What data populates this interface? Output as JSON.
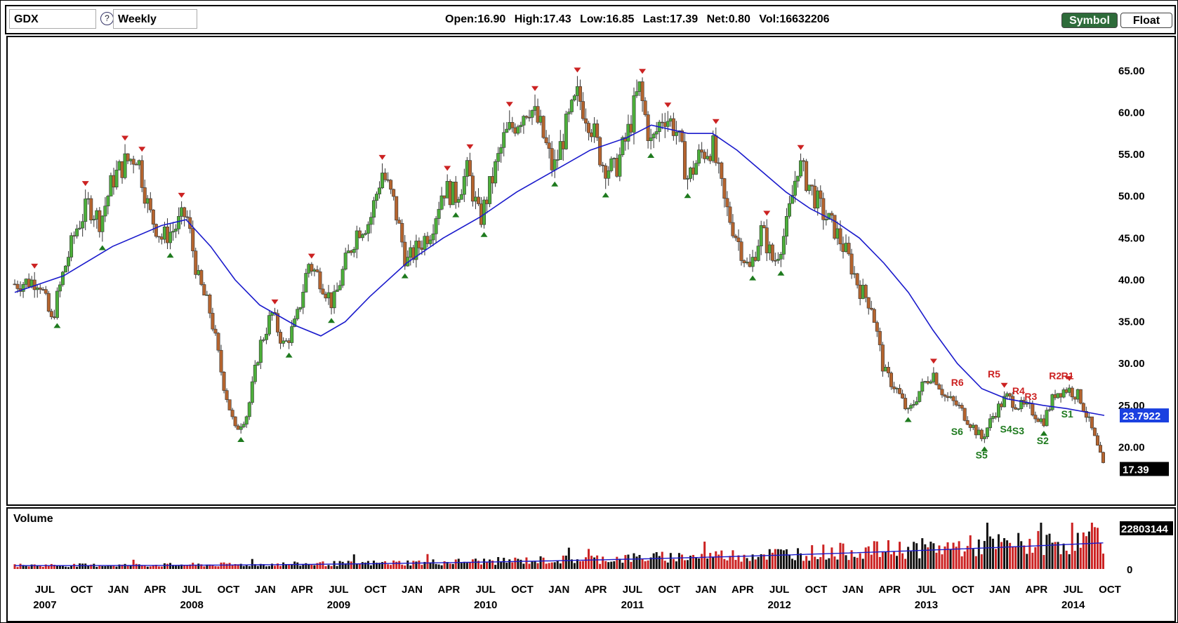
{
  "toolbar": {
    "symbol": "GDX",
    "period": "Weekly",
    "help_icon": "?",
    "quote": {
      "open": "Open:16.90",
      "high": "High:17.43",
      "low": "Low:16.85",
      "last": "Last:17.39",
      "net": "Net:0.80",
      "vol": "Vol:16632206"
    },
    "symbol_button": "Symbol",
    "float_button": "Float"
  },
  "volume_panel": {
    "title": "Volume",
    "last_value_label": "22803144",
    "zero_label": "0"
  },
  "colors": {
    "up": "#4caf3a",
    "down": "#b5642e",
    "ma": "#1a1acc",
    "resistance": "#cc2222",
    "support": "#1e7a1e",
    "ma_label_bg": "#1a40e0",
    "last_label_bg": "#000000",
    "volume_up": "#111111",
    "volume_down": "#cc2222"
  },
  "chart_data": {
    "type": "line",
    "ylim": [
      14,
      68
    ],
    "y_ticks": [
      "20.00",
      "25.00",
      "30.00",
      "35.00",
      "40.00",
      "45.00",
      "50.00",
      "55.00",
      "60.00",
      "65.00"
    ],
    "ma_label": "23.7922",
    "last_label": "17.39",
    "month_labels": [
      "JUL",
      "OCT",
      "JAN",
      "APR",
      "JUL",
      "OCT",
      "JAN",
      "APR",
      "JUL",
      "OCT",
      "JAN",
      "APR",
      "JUL",
      "OCT",
      "JAN",
      "APR",
      "JUL",
      "OCT",
      "JAN",
      "APR",
      "JUL",
      "OCT",
      "JAN",
      "APR",
      "JUL",
      "OCT",
      "JAN",
      "APR",
      "JUL",
      "OCT"
    ],
    "year_labels": [
      "2007",
      "2008",
      "2009",
      "2010",
      "2011",
      "2012",
      "2013",
      "2014"
    ],
    "x_start": "2007-05",
    "x_end": "2014-10",
    "price_points": [
      [
        "2007-05",
        39.5
      ],
      [
        "2007-07",
        40
      ],
      [
        "2007-08",
        35
      ],
      [
        "2007-09",
        41
      ],
      [
        "2007-10",
        46
      ],
      [
        "2007-11",
        49
      ],
      [
        "2007-12",
        47
      ],
      [
        "2008-01",
        52
      ],
      [
        "2008-02",
        54
      ],
      [
        "2008-03",
        55
      ],
      [
        "2008-04",
        48
      ],
      [
        "2008-05",
        45
      ],
      [
        "2008-06",
        46
      ],
      [
        "2008-07",
        48
      ],
      [
        "2008-08",
        40
      ],
      [
        "2008-09",
        36
      ],
      [
        "2008-10",
        28
      ],
      [
        "2008-11",
        22
      ],
      [
        "2008-12",
        24
      ],
      [
        "2009-01",
        32
      ],
      [
        "2009-02",
        36
      ],
      [
        "2009-03",
        32
      ],
      [
        "2009-04",
        35
      ],
      [
        "2009-05",
        42
      ],
      [
        "2009-06",
        40
      ],
      [
        "2009-07",
        37
      ],
      [
        "2009-08",
        42
      ],
      [
        "2009-09",
        46
      ],
      [
        "2009-10",
        47
      ],
      [
        "2009-11",
        53
      ],
      [
        "2009-12",
        49
      ],
      [
        "2010-01",
        42
      ],
      [
        "2010-02",
        44
      ],
      [
        "2010-03",
        46
      ],
      [
        "2010-04",
        51
      ],
      [
        "2010-05",
        50
      ],
      [
        "2010-06",
        53
      ],
      [
        "2010-07",
        47
      ],
      [
        "2010-08",
        52
      ],
      [
        "2010-09",
        57
      ],
      [
        "2010-10",
        59
      ],
      [
        "2010-11",
        61
      ],
      [
        "2010-12",
        58
      ],
      [
        "2011-01",
        53
      ],
      [
        "2011-02",
        58
      ],
      [
        "2011-03",
        62
      ],
      [
        "2011-04",
        59
      ],
      [
        "2011-05",
        54
      ],
      [
        "2011-06",
        53
      ],
      [
        "2011-07",
        57
      ],
      [
        "2011-08",
        63
      ],
      [
        "2011-09",
        56
      ],
      [
        "2011-10",
        60
      ],
      [
        "2011-11",
        58
      ],
      [
        "2011-12",
        52
      ],
      [
        "2012-01",
        55
      ],
      [
        "2012-02",
        56
      ],
      [
        "2012-03",
        49
      ],
      [
        "2012-04",
        45
      ],
      [
        "2012-05",
        41
      ],
      [
        "2012-06",
        46
      ],
      [
        "2012-07",
        42
      ],
      [
        "2012-08",
        46
      ],
      [
        "2012-09",
        54
      ],
      [
        "2012-10",
        51
      ],
      [
        "2012-11",
        48
      ],
      [
        "2012-12",
        46
      ],
      [
        "2013-01",
        43
      ],
      [
        "2013-02",
        39
      ],
      [
        "2013-03",
        37
      ],
      [
        "2013-04",
        29
      ],
      [
        "2013-05",
        27
      ],
      [
        "2013-06",
        24
      ],
      [
        "2013-07",
        27
      ],
      [
        "2013-08",
        29
      ],
      [
        "2013-09",
        26
      ],
      [
        "2013-10",
        25
      ],
      [
        "2013-11",
        23
      ],
      [
        "2013-12",
        21
      ],
      [
        "2014-01",
        24
      ],
      [
        "2014-02",
        26
      ],
      [
        "2014-03",
        25
      ],
      [
        "2014-04",
        24.5
      ],
      [
        "2014-05",
        23
      ],
      [
        "2014-06",
        26.5
      ],
      [
        "2014-07",
        27
      ],
      [
        "2014-08",
        26
      ],
      [
        "2014-09",
        22
      ],
      [
        "2014-10",
        17.4
      ]
    ],
    "ma_points": [
      [
        "2007-05",
        38.5
      ],
      [
        "2007-09",
        40.5
      ],
      [
        "2008-01",
        44
      ],
      [
        "2008-05",
        46.5
      ],
      [
        "2008-07",
        47.2
      ],
      [
        "2008-09",
        44
      ],
      [
        "2008-11",
        40
      ],
      [
        "2009-01",
        37
      ],
      [
        "2009-04",
        34.5
      ],
      [
        "2009-06",
        33.3
      ],
      [
        "2009-08",
        35
      ],
      [
        "2009-10",
        38
      ],
      [
        "2010-01",
        42
      ],
      [
        "2010-04",
        45
      ],
      [
        "2010-07",
        47.5
      ],
      [
        "2010-10",
        50.5
      ],
      [
        "2011-01",
        53
      ],
      [
        "2011-04",
        55.5
      ],
      [
        "2011-07",
        57
      ],
      [
        "2011-09",
        58.5
      ],
      [
        "2011-12",
        57.5
      ],
      [
        "2012-02",
        57.5
      ],
      [
        "2012-04",
        55.5
      ],
      [
        "2012-06",
        53
      ],
      [
        "2012-08",
        50.5
      ],
      [
        "2012-10",
        48.5
      ],
      [
        "2012-12",
        47
      ],
      [
        "2013-02",
        45
      ],
      [
        "2013-04",
        42
      ],
      [
        "2013-06",
        38.5
      ],
      [
        "2013-08",
        34
      ],
      [
        "2013-10",
        30
      ],
      [
        "2013-12",
        27
      ],
      [
        "2014-02",
        25.8
      ],
      [
        "2014-05",
        25
      ],
      [
        "2014-07",
        24.6
      ],
      [
        "2014-10",
        23.8
      ]
    ],
    "resistance_levels": [
      {
        "label": "R6",
        "date": "2013-10",
        "value": 26.5
      },
      {
        "label": "R5",
        "date": "2014-01",
        "value": 27.5
      },
      {
        "label": "R4",
        "date": "2014-03",
        "value": 25.5
      },
      {
        "label": "R3",
        "date": "2014-04",
        "value": 24.8
      },
      {
        "label": "R2",
        "date": "2014-06",
        "value": 27.3
      },
      {
        "label": "R1",
        "date": "2014-07",
        "value": 27.3
      }
    ],
    "support_levels": [
      {
        "label": "S6",
        "date": "2013-10",
        "value": 23.3
      },
      {
        "label": "S5",
        "date": "2013-12",
        "value": 20.5
      },
      {
        "label": "S4",
        "date": "2014-02",
        "value": 23.6
      },
      {
        "label": "S3",
        "date": "2014-03",
        "value": 23.4
      },
      {
        "label": "S2",
        "date": "2014-05",
        "value": 22.2
      },
      {
        "label": "S1",
        "date": "2014-07",
        "value": 25.4
      }
    ]
  }
}
